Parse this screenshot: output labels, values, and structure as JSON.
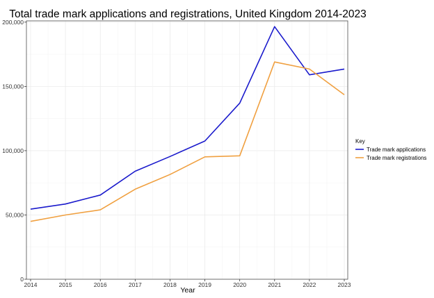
{
  "chart_data": {
    "type": "line",
    "title": "Total trade mark applications and registrations, United Kingdom 2014-2023",
    "xlabel": "Year",
    "ylabel": "",
    "x": [
      "2014",
      "2015",
      "2016",
      "2017",
      "2018",
      "2019",
      "2020",
      "2021",
      "2022",
      "2023"
    ],
    "ylim": [
      0,
      200000
    ],
    "yticks": [
      0,
      50000,
      100000,
      150000,
      200000
    ],
    "ytick_labels": [
      "0",
      "50,000",
      "100,000",
      "150,000",
      "200,000"
    ],
    "grid": true,
    "legend_title": "Key",
    "legend_position": "right",
    "series": [
      {
        "name": "Trade mark applications",
        "color": "#1a1acc",
        "values": [
          54500,
          58500,
          65500,
          84000,
          95500,
          107500,
          137000,
          196500,
          159000,
          163500
        ]
      },
      {
        "name": "Trade mark registrations",
        "color": "#f0a040",
        "values": [
          45000,
          50000,
          54000,
          70000,
          81500,
          95200,
          96000,
          169000,
          163500,
          143500
        ]
      }
    ]
  }
}
